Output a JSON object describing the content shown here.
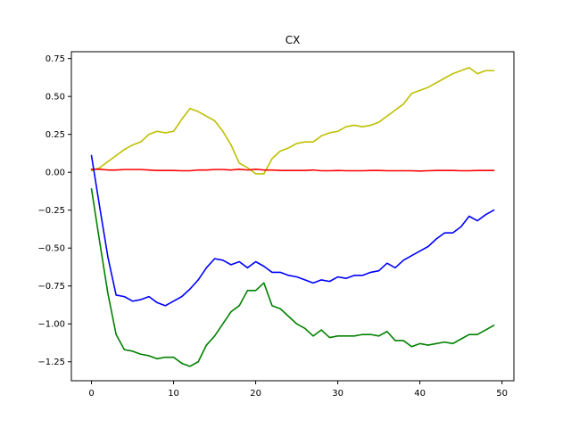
{
  "chart_data": {
    "type": "line",
    "title": "CX",
    "xlabel": "",
    "ylabel": "",
    "xlim": [
      -2.45,
      51.45
    ],
    "ylim": [
      -1.375,
      0.795
    ],
    "grid": false,
    "legend": "none",
    "x_ticks": [
      0,
      10,
      20,
      30,
      40,
      50
    ],
    "x_tick_labels": [
      "0",
      "10",
      "20",
      "30",
      "40",
      "50"
    ],
    "y_ticks": [
      0.75,
      0.5,
      0.25,
      0.0,
      -0.25,
      -0.5,
      -0.75,
      -1.0,
      -1.25
    ],
    "y_tick_labels": [
      "0.75",
      "0.50",
      "0.25",
      "0.00",
      "−0.25",
      "−0.50",
      "−0.75",
      "−1.00",
      "−1.25"
    ],
    "x": [
      0,
      1,
      2,
      3,
      4,
      5,
      6,
      7,
      8,
      9,
      10,
      11,
      12,
      13,
      14,
      15,
      16,
      17,
      18,
      19,
      20,
      21,
      22,
      23,
      24,
      25,
      26,
      27,
      28,
      29,
      30,
      31,
      32,
      33,
      34,
      35,
      36,
      37,
      38,
      39,
      40,
      41,
      42,
      43,
      44,
      45,
      46,
      47,
      48,
      49
    ],
    "series": [
      {
        "color": "#bfbf00",
        "values": [
          0.01,
          0.03,
          0.07,
          0.11,
          0.15,
          0.18,
          0.2,
          0.25,
          0.27,
          0.26,
          0.27,
          0.35,
          0.42,
          0.4,
          0.37,
          0.34,
          0.27,
          0.18,
          0.06,
          0.03,
          -0.01,
          -0.01,
          0.09,
          0.14,
          0.16,
          0.19,
          0.2,
          0.2,
          0.24,
          0.26,
          0.27,
          0.3,
          0.31,
          0.3,
          0.31,
          0.33,
          0.37,
          0.41,
          0.45,
          0.52,
          0.54,
          0.56,
          0.59,
          0.62,
          0.65,
          0.67,
          0.69,
          0.65,
          0.67,
          0.67
        ]
      },
      {
        "color": "#ff0000",
        "values": [
          0.02,
          0.02,
          0.015,
          0.015,
          0.018,
          0.018,
          0.018,
          0.015,
          0.012,
          0.012,
          0.012,
          0.01,
          0.01,
          0.015,
          0.015,
          0.018,
          0.018,
          0.015,
          0.02,
          0.015,
          0.02,
          0.015,
          0.015,
          0.012,
          0.012,
          0.012,
          0.012,
          0.015,
          0.01,
          0.01,
          0.012,
          0.01,
          0.01,
          0.01,
          0.012,
          0.012,
          0.01,
          0.01,
          0.01,
          0.01,
          0.008,
          0.01,
          0.012,
          0.012,
          0.012,
          0.01,
          0.01,
          0.012,
          0.012,
          0.012
        ]
      },
      {
        "color": "#0000ff",
        "values": [
          0.11,
          -0.23,
          -0.56,
          -0.81,
          -0.82,
          -0.85,
          -0.84,
          -0.82,
          -0.86,
          -0.88,
          -0.85,
          -0.82,
          -0.77,
          -0.71,
          -0.63,
          -0.57,
          -0.58,
          -0.61,
          -0.59,
          -0.63,
          -0.59,
          -0.62,
          -0.66,
          -0.66,
          -0.68,
          -0.69,
          -0.71,
          -0.73,
          -0.71,
          -0.72,
          -0.69,
          -0.7,
          -0.68,
          -0.68,
          -0.66,
          -0.65,
          -0.6,
          -0.63,
          -0.58,
          -0.55,
          -0.52,
          -0.49,
          -0.44,
          -0.4,
          -0.4,
          -0.36,
          -0.29,
          -0.32,
          -0.28,
          -0.25
        ]
      },
      {
        "color": "#008000",
        "values": [
          -0.11,
          -0.46,
          -0.8,
          -1.07,
          -1.17,
          -1.18,
          -1.2,
          -1.21,
          -1.23,
          -1.22,
          -1.22,
          -1.26,
          -1.28,
          -1.25,
          -1.14,
          -1.08,
          -1.0,
          -0.92,
          -0.88,
          -0.78,
          -0.78,
          -0.73,
          -0.88,
          -0.9,
          -0.95,
          -1.0,
          -1.03,
          -1.08,
          -1.04,
          -1.09,
          -1.08,
          -1.08,
          -1.08,
          -1.07,
          -1.07,
          -1.08,
          -1.05,
          -1.11,
          -1.11,
          -1.15,
          -1.13,
          -1.14,
          -1.13,
          -1.12,
          -1.13,
          -1.1,
          -1.07,
          -1.07,
          -1.04,
          -1.01
        ]
      }
    ]
  }
}
